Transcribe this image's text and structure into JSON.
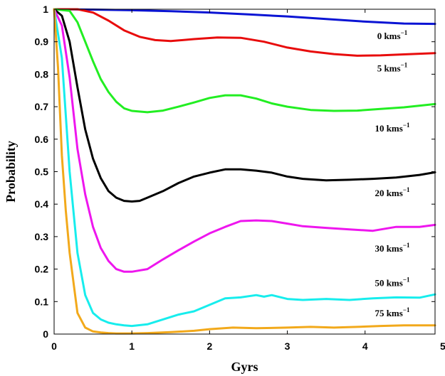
{
  "chart_data": {
    "type": "line",
    "xlabel": "Gyrs",
    "ylabel": "Probability",
    "xlim": [
      0,
      4.9
    ],
    "ylim": [
      0,
      1
    ],
    "xticks": [
      "0",
      "1",
      "2",
      "3",
      "4",
      "5"
    ],
    "yticks": [
      "0",
      "0.1",
      "0.2",
      "0.3",
      "0.4",
      "0.5",
      "0.6",
      "0.7",
      "0.8",
      "0.9",
      "1"
    ],
    "grid": false,
    "series": [
      {
        "name": "0 kms",
        "unit_sup": "−1",
        "color": "#0a14d4",
        "label_x": 4.35,
        "label_y": 0.908,
        "x": [
          0,
          0.5,
          1.0,
          1.5,
          2.0,
          2.5,
          3.0,
          3.5,
          4.0,
          4.5,
          4.9
        ],
        "y": [
          1.0,
          0.999,
          0.997,
          0.994,
          0.99,
          0.984,
          0.978,
          0.97,
          0.962,
          0.956,
          0.955
        ]
      },
      {
        "name": "5 kms",
        "unit_sup": "−1",
        "color": "#e80c0c",
        "label_x": 4.35,
        "label_y": 0.808,
        "x": [
          0,
          0.3,
          0.5,
          0.7,
          0.9,
          1.1,
          1.3,
          1.5,
          1.8,
          2.1,
          2.4,
          2.7,
          3.0,
          3.3,
          3.6,
          3.9,
          4.2,
          4.5,
          4.9
        ],
        "y": [
          1.0,
          1.0,
          0.99,
          0.965,
          0.935,
          0.915,
          0.905,
          0.902,
          0.908,
          0.913,
          0.912,
          0.9,
          0.882,
          0.87,
          0.862,
          0.857,
          0.858,
          0.861,
          0.865
        ]
      },
      {
        "name": "10 kms",
        "unit_sup": "−1",
        "color": "#22ee22",
        "label_x": 4.35,
        "label_y": 0.624,
        "x": [
          0,
          0.2,
          0.3,
          0.4,
          0.5,
          0.6,
          0.7,
          0.8,
          0.9,
          1.0,
          1.2,
          1.4,
          1.6,
          1.8,
          2.0,
          2.2,
          2.4,
          2.6,
          2.8,
          3.0,
          3.3,
          3.6,
          3.9,
          4.2,
          4.5,
          4.9
        ],
        "y": [
          1.0,
          0.995,
          0.96,
          0.9,
          0.84,
          0.785,
          0.745,
          0.715,
          0.695,
          0.687,
          0.683,
          0.688,
          0.7,
          0.713,
          0.727,
          0.735,
          0.735,
          0.725,
          0.71,
          0.7,
          0.69,
          0.687,
          0.688,
          0.693,
          0.698,
          0.708
        ]
      },
      {
        "name": "20 kms",
        "unit_sup": "−1",
        "color": "#000000",
        "label_x": 4.35,
        "label_y": 0.424,
        "x": [
          0,
          0.1,
          0.2,
          0.3,
          0.4,
          0.5,
          0.6,
          0.7,
          0.8,
          0.9,
          1.0,
          1.1,
          1.2,
          1.4,
          1.6,
          1.8,
          2.0,
          2.2,
          2.4,
          2.6,
          2.8,
          3.0,
          3.2,
          3.5,
          3.8,
          4.1,
          4.4,
          4.7,
          4.9
        ],
        "y": [
          1.0,
          0.98,
          0.9,
          0.76,
          0.63,
          0.54,
          0.48,
          0.44,
          0.42,
          0.41,
          0.408,
          0.41,
          0.42,
          0.44,
          0.465,
          0.485,
          0.497,
          0.507,
          0.507,
          0.503,
          0.497,
          0.485,
          0.478,
          0.473,
          0.475,
          0.478,
          0.482,
          0.49,
          0.498
        ]
      },
      {
        "name": "30 kms",
        "unit_sup": "−1",
        "color": "#ee16ee",
        "label_x": 4.35,
        "label_y": 0.254,
        "x": [
          0,
          0.1,
          0.2,
          0.3,
          0.4,
          0.5,
          0.6,
          0.7,
          0.8,
          0.9,
          1.0,
          1.2,
          1.4,
          1.6,
          1.8,
          2.0,
          2.2,
          2.4,
          2.6,
          2.8,
          3.0,
          3.2,
          3.5,
          3.8,
          4.1,
          4.4,
          4.7,
          4.9
        ],
        "y": [
          1.0,
          0.95,
          0.79,
          0.57,
          0.43,
          0.33,
          0.265,
          0.225,
          0.2,
          0.192,
          0.192,
          0.2,
          0.23,
          0.258,
          0.285,
          0.31,
          0.33,
          0.348,
          0.35,
          0.348,
          0.34,
          0.332,
          0.327,
          0.322,
          0.318,
          0.33,
          0.33,
          0.336
        ]
      },
      {
        "name": "50 kms",
        "unit_sup": "−1",
        "color": "#17eded",
        "label_x": 4.35,
        "label_y": 0.148,
        "x": [
          0,
          0.1,
          0.2,
          0.3,
          0.4,
          0.5,
          0.6,
          0.7,
          0.8,
          0.9,
          1.0,
          1.2,
          1.4,
          1.6,
          1.8,
          2.0,
          2.2,
          2.4,
          2.6,
          2.7,
          2.8,
          3.0,
          3.2,
          3.5,
          3.8,
          4.1,
          4.4,
          4.7,
          4.9
        ],
        "y": [
          1.0,
          0.85,
          0.5,
          0.25,
          0.12,
          0.065,
          0.045,
          0.035,
          0.03,
          0.027,
          0.025,
          0.03,
          0.045,
          0.06,
          0.07,
          0.09,
          0.11,
          0.113,
          0.12,
          0.115,
          0.12,
          0.108,
          0.105,
          0.108,
          0.105,
          0.11,
          0.113,
          0.112,
          0.122
        ]
      },
      {
        "name": "75 kms",
        "unit_sup": "−1",
        "color": "#f2a91b",
        "label_x": 4.35,
        "label_y": 0.055,
        "x": [
          0,
          0.05,
          0.1,
          0.15,
          0.2,
          0.3,
          0.4,
          0.5,
          0.6,
          0.7,
          0.8,
          1.0,
          1.2,
          1.5,
          1.8,
          2.0,
          2.3,
          2.6,
          3.0,
          3.3,
          3.6,
          3.9,
          4.2,
          4.5,
          4.9
        ],
        "y": [
          1.0,
          0.82,
          0.55,
          0.38,
          0.25,
          0.065,
          0.02,
          0.008,
          0.005,
          0.003,
          0.002,
          0.002,
          0.003,
          0.006,
          0.01,
          0.015,
          0.02,
          0.018,
          0.02,
          0.022,
          0.02,
          0.022,
          0.025,
          0.027,
          0.027
        ]
      }
    ]
  }
}
